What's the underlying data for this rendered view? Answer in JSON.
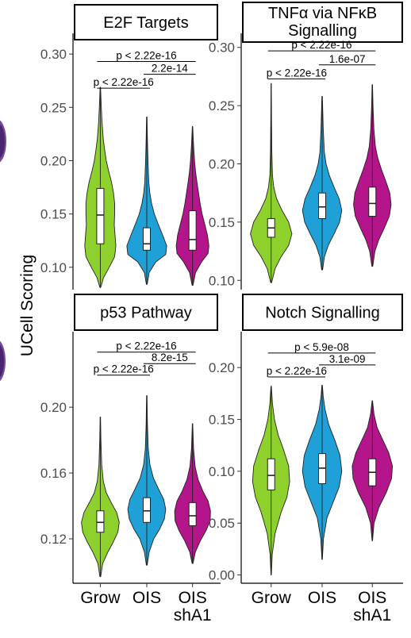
{
  "ylabel": "UCell Scoring",
  "colors": {
    "Grow": "#8fd12c",
    "OIS": "#1fa0d6",
    "OIS shA1": "#b5158a"
  },
  "chart_data": [
    {
      "type": "violin",
      "title": "E2F Targets",
      "categories": [
        "Grow",
        "OIS",
        "OIS shA1"
      ],
      "yticks": [
        0.1,
        0.15,
        0.2,
        0.25,
        0.3
      ],
      "ylim": [
        0.079,
        0.315
      ],
      "series": [
        {
          "name": "Grow",
          "min": 0.081,
          "q1": 0.122,
          "median": 0.149,
          "q3": 0.174,
          "max": 0.269,
          "density": [
            [
              0.081,
              0.02
            ],
            [
              0.09,
              0.16
            ],
            [
              0.1,
              0.45
            ],
            [
              0.11,
              0.72
            ],
            [
              0.12,
              0.78
            ],
            [
              0.13,
              0.74
            ],
            [
              0.14,
              0.7
            ],
            [
              0.15,
              0.72
            ],
            [
              0.16,
              0.72
            ],
            [
              0.17,
              0.66
            ],
            [
              0.18,
              0.56
            ],
            [
              0.19,
              0.42
            ],
            [
              0.2,
              0.3
            ],
            [
              0.21,
              0.22
            ],
            [
              0.22,
              0.15
            ],
            [
              0.235,
              0.09
            ],
            [
              0.25,
              0.05
            ],
            [
              0.269,
              0.01
            ]
          ]
        },
        {
          "name": "OIS",
          "min": 0.084,
          "q1": 0.116,
          "median": 0.122,
          "q3": 0.137,
          "max": 0.241,
          "density": [
            [
              0.084,
              0.02
            ],
            [
              0.095,
              0.12
            ],
            [
              0.105,
              0.45
            ],
            [
              0.112,
              0.95
            ],
            [
              0.12,
              1.0
            ],
            [
              0.13,
              0.8
            ],
            [
              0.14,
              0.58
            ],
            [
              0.15,
              0.38
            ],
            [
              0.16,
              0.24
            ],
            [
              0.17,
              0.15
            ],
            [
              0.18,
              0.1
            ],
            [
              0.2,
              0.06
            ],
            [
              0.22,
              0.03
            ],
            [
              0.241,
              0.01
            ]
          ]
        },
        {
          "name": "OIS shA1",
          "min": 0.083,
          "q1": 0.116,
          "median": 0.126,
          "q3": 0.153,
          "max": 0.232,
          "density": [
            [
              0.083,
              0.02
            ],
            [
              0.095,
              0.15
            ],
            [
              0.105,
              0.45
            ],
            [
              0.113,
              0.78
            ],
            [
              0.12,
              0.82
            ],
            [
              0.13,
              0.75
            ],
            [
              0.14,
              0.62
            ],
            [
              0.15,
              0.48
            ],
            [
              0.16,
              0.38
            ],
            [
              0.17,
              0.3
            ],
            [
              0.18,
              0.22
            ],
            [
              0.19,
              0.15
            ],
            [
              0.2,
              0.1
            ],
            [
              0.215,
              0.05
            ],
            [
              0.232,
              0.01
            ]
          ]
        }
      ],
      "comparisons": [
        {
          "from": 0,
          "to": 2,
          "label": "p < 2.22e-16",
          "y": 0.293
        },
        {
          "from": 1,
          "to": 2,
          "label": "2.2e-14",
          "y": 0.281
        },
        {
          "from": 0,
          "to": 1,
          "label": "p < 2.22e-16",
          "y": 0.268
        }
      ]
    },
    {
      "type": "violin",
      "title_lines": [
        "TNFα via NFκB",
        "Signalling"
      ],
      "categories": [
        "Grow",
        "OIS",
        "OIS shA1"
      ],
      "yticks": [
        0.1,
        0.15,
        0.2,
        0.25,
        0.3
      ],
      "ylim": [
        0.092,
        0.308
      ],
      "series": [
        {
          "name": "Grow",
          "min": 0.098,
          "q1": 0.137,
          "median": 0.145,
          "q3": 0.153,
          "max": 0.269,
          "density": [
            [
              0.098,
              0.02
            ],
            [
              0.11,
              0.18
            ],
            [
              0.12,
              0.45
            ],
            [
              0.13,
              0.8
            ],
            [
              0.14,
              0.95
            ],
            [
              0.15,
              0.8
            ],
            [
              0.16,
              0.5
            ],
            [
              0.17,
              0.25
            ],
            [
              0.18,
              0.12
            ],
            [
              0.19,
              0.06
            ],
            [
              0.21,
              0.03
            ],
            [
              0.24,
              0.015
            ],
            [
              0.269,
              0.005
            ]
          ]
        },
        {
          "name": "OIS",
          "min": 0.109,
          "q1": 0.153,
          "median": 0.163,
          "q3": 0.175,
          "max": 0.258,
          "density": [
            [
              0.109,
              0.02
            ],
            [
              0.12,
              0.1
            ],
            [
              0.13,
              0.28
            ],
            [
              0.14,
              0.55
            ],
            [
              0.15,
              0.8
            ],
            [
              0.16,
              0.9
            ],
            [
              0.17,
              0.78
            ],
            [
              0.18,
              0.55
            ],
            [
              0.19,
              0.33
            ],
            [
              0.2,
              0.18
            ],
            [
              0.21,
              0.1
            ],
            [
              0.23,
              0.05
            ],
            [
              0.258,
              0.01
            ]
          ]
        },
        {
          "name": "OIS shA1",
          "min": 0.112,
          "q1": 0.155,
          "median": 0.166,
          "q3": 0.18,
          "max": 0.268,
          "density": [
            [
              0.112,
              0.02
            ],
            [
              0.125,
              0.12
            ],
            [
              0.135,
              0.3
            ],
            [
              0.145,
              0.55
            ],
            [
              0.155,
              0.78
            ],
            [
              0.165,
              0.86
            ],
            [
              0.175,
              0.8
            ],
            [
              0.185,
              0.62
            ],
            [
              0.195,
              0.42
            ],
            [
              0.205,
              0.25
            ],
            [
              0.215,
              0.14
            ],
            [
              0.23,
              0.07
            ],
            [
              0.25,
              0.03
            ],
            [
              0.268,
              0.01
            ]
          ]
        }
      ],
      "comparisons": [
        {
          "from": 0,
          "to": 2,
          "label": "p < 2.22e-16",
          "y": 0.297
        },
        {
          "from": 1,
          "to": 2,
          "label": "1.6e-07",
          "y": 0.285
        },
        {
          "from": 0,
          "to": 1,
          "label": "p < 2.22e-16",
          "y": 0.273
        }
      ]
    },
    {
      "type": "violin",
      "title": "p53 Pathway",
      "categories": [
        "Grow",
        "OIS",
        "OIS shA1"
      ],
      "yticks": [
        0.12,
        0.16,
        0.2
      ],
      "ylim": [
        0.093,
        0.243
      ],
      "series": [
        {
          "name": "Grow",
          "min": 0.097,
          "q1": 0.124,
          "median": 0.13,
          "q3": 0.137,
          "max": 0.194,
          "density": [
            [
              0.097,
              0.02
            ],
            [
              0.105,
              0.12
            ],
            [
              0.112,
              0.38
            ],
            [
              0.118,
              0.65
            ],
            [
              0.124,
              0.88
            ],
            [
              0.13,
              0.95
            ],
            [
              0.136,
              0.82
            ],
            [
              0.142,
              0.55
            ],
            [
              0.148,
              0.3
            ],
            [
              0.155,
              0.15
            ],
            [
              0.165,
              0.07
            ],
            [
              0.18,
              0.03
            ],
            [
              0.194,
              0.01
            ]
          ]
        },
        {
          "name": "OIS",
          "min": 0.104,
          "q1": 0.13,
          "median": 0.137,
          "q3": 0.145,
          "max": 0.207,
          "density": [
            [
              0.104,
              0.02
            ],
            [
              0.112,
              0.12
            ],
            [
              0.12,
              0.35
            ],
            [
              0.126,
              0.65
            ],
            [
              0.132,
              0.88
            ],
            [
              0.138,
              0.95
            ],
            [
              0.144,
              0.85
            ],
            [
              0.15,
              0.6
            ],
            [
              0.157,
              0.33
            ],
            [
              0.165,
              0.16
            ],
            [
              0.175,
              0.07
            ],
            [
              0.19,
              0.03
            ],
            [
              0.207,
              0.01
            ]
          ]
        },
        {
          "name": "OIS shA1",
          "min": 0.105,
          "q1": 0.128,
          "median": 0.134,
          "q3": 0.142,
          "max": 0.19,
          "density": [
            [
              0.105,
              0.02
            ],
            [
              0.112,
              0.14
            ],
            [
              0.119,
              0.4
            ],
            [
              0.125,
              0.68
            ],
            [
              0.131,
              0.88
            ],
            [
              0.137,
              0.9
            ],
            [
              0.143,
              0.78
            ],
            [
              0.149,
              0.52
            ],
            [
              0.156,
              0.28
            ],
            [
              0.164,
              0.13
            ],
            [
              0.175,
              0.05
            ],
            [
              0.19,
              0.01
            ]
          ]
        }
      ],
      "comparisons": [
        {
          "from": 0,
          "to": 2,
          "label": "p < 2.22e-16",
          "y": 0.2335
        },
        {
          "from": 1,
          "to": 2,
          "label": "8.2e-15",
          "y": 0.2265
        },
        {
          "from": 0,
          "to": 1,
          "label": "p < 2.22e-16",
          "y": 0.2195
        }
      ]
    },
    {
      "type": "violin",
      "title": "Notch Signalling",
      "categories": [
        "Grow",
        "OIS",
        "OIS shA1"
      ],
      "yticks": [
        0.0,
        0.05,
        0.1,
        0.15,
        0.2
      ],
      "ylim": [
        -0.008,
        0.23
      ],
      "series": [
        {
          "name": "Grow",
          "min": 0.0,
          "q1": 0.082,
          "median": 0.096,
          "q3": 0.112,
          "max": 0.182,
          "density": [
            [
              0.0,
              0.01
            ],
            [
              0.02,
              0.05
            ],
            [
              0.04,
              0.18
            ],
            [
              0.06,
              0.45
            ],
            [
              0.075,
              0.72
            ],
            [
              0.09,
              0.85
            ],
            [
              0.105,
              0.8
            ],
            [
              0.12,
              0.58
            ],
            [
              0.135,
              0.32
            ],
            [
              0.15,
              0.15
            ],
            [
              0.165,
              0.06
            ],
            [
              0.182,
              0.01
            ]
          ]
        },
        {
          "name": "OIS",
          "min": 0.015,
          "q1": 0.088,
          "median": 0.103,
          "q3": 0.117,
          "max": 0.183,
          "density": [
            [
              0.015,
              0.01
            ],
            [
              0.035,
              0.06
            ],
            [
              0.055,
              0.22
            ],
            [
              0.07,
              0.5
            ],
            [
              0.085,
              0.78
            ],
            [
              0.1,
              0.9
            ],
            [
              0.115,
              0.82
            ],
            [
              0.13,
              0.58
            ],
            [
              0.145,
              0.3
            ],
            [
              0.16,
              0.13
            ],
            [
              0.172,
              0.05
            ],
            [
              0.183,
              0.01
            ]
          ]
        },
        {
          "name": "OIS shA1",
          "min": 0.033,
          "q1": 0.086,
          "median": 0.099,
          "q3": 0.112,
          "max": 0.168,
          "density": [
            [
              0.033,
              0.01
            ],
            [
              0.05,
              0.08
            ],
            [
              0.065,
              0.3
            ],
            [
              0.08,
              0.65
            ],
            [
              0.093,
              0.88
            ],
            [
              0.105,
              0.92
            ],
            [
              0.118,
              0.75
            ],
            [
              0.13,
              0.48
            ],
            [
              0.142,
              0.22
            ],
            [
              0.155,
              0.08
            ],
            [
              0.168,
              0.01
            ]
          ]
        }
      ],
      "comparisons": [
        {
          "from": 0,
          "to": 2,
          "label": "p < 5.9e-08",
          "y": 0.214
        },
        {
          "from": 1,
          "to": 2,
          "label": "3.1e-09",
          "y": 0.2025
        },
        {
          "from": 0,
          "to": 1,
          "label": "p < 2.22e-16",
          "y": 0.191
        }
      ]
    }
  ],
  "x_tick_labels": [
    [
      "Grow"
    ],
    [
      "OIS"
    ],
    [
      "OIS",
      "shA1"
    ]
  ]
}
